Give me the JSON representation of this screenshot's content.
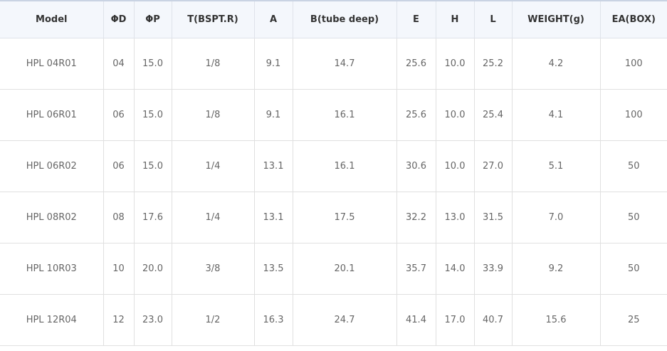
{
  "table": {
    "headers": [
      "Model",
      "ΦD",
      "ΦP",
      "T(BSPT.R)",
      "A",
      "B(tube deep)",
      "E",
      "H",
      "L",
      "WEIGHT(g)",
      "EA(BOX)"
    ],
    "rows": [
      [
        "HPL 04R01",
        "04",
        "15.0",
        "1/8",
        "9.1",
        "14.7",
        "25.6",
        "10.0",
        "25.2",
        "4.2",
        "100"
      ],
      [
        "HPL 06R01",
        "06",
        "15.0",
        "1/8",
        "9.1",
        "16.1",
        "25.6",
        "10.0",
        "25.4",
        "4.1",
        "100"
      ],
      [
        "HPL 06R02",
        "06",
        "15.0",
        "1/4",
        "13.1",
        "16.1",
        "30.6",
        "10.0",
        "27.0",
        "5.1",
        "50"
      ],
      [
        "HPL 08R02",
        "08",
        "17.6",
        "1/4",
        "13.1",
        "17.5",
        "32.2",
        "13.0",
        "31.5",
        "7.0",
        "50"
      ],
      [
        "HPL 10R03",
        "10",
        "20.0",
        "3/8",
        "13.5",
        "20.1",
        "35.7",
        "14.0",
        "33.9",
        "9.2",
        "50"
      ],
      [
        "HPL 12R04",
        "12",
        "23.0",
        "1/2",
        "16.3",
        "24.7",
        "41.4",
        "17.0",
        "40.7",
        "15.6",
        "25"
      ]
    ]
  }
}
